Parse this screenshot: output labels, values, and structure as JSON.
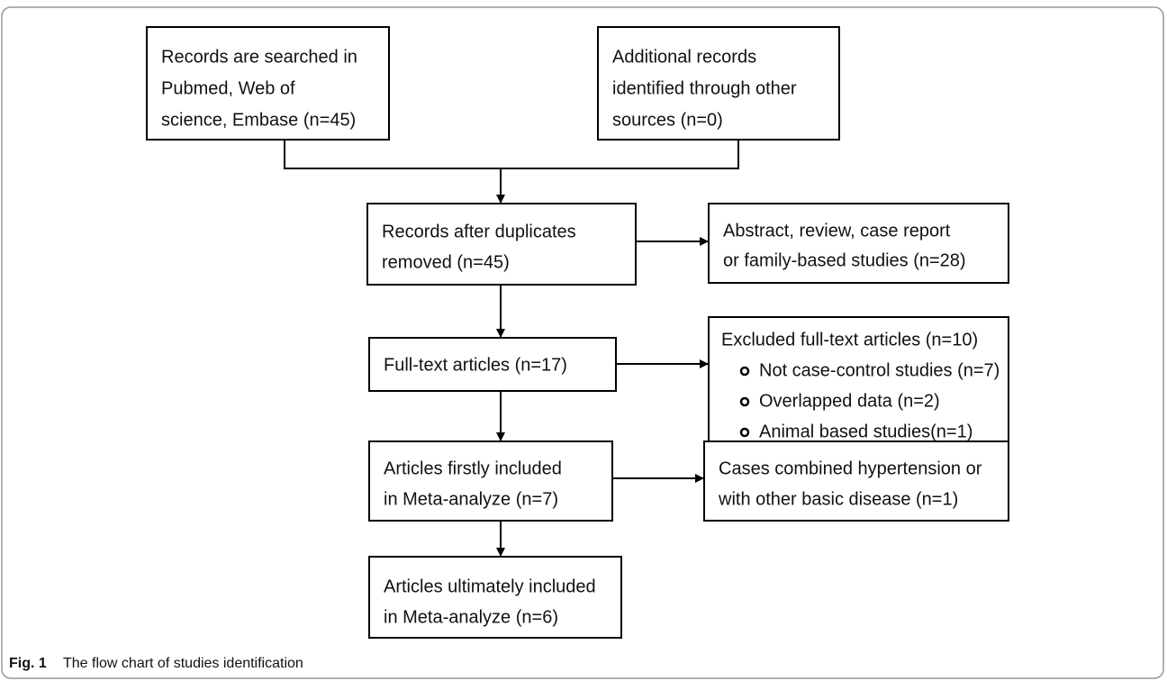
{
  "nodes": [
    {
      "lines": [
        "Records are searched in",
        "Pubmed, Web of",
        "science, Embase (n=45)"
      ]
    },
    {
      "lines": [
        "Additional records",
        "identified through other",
        "sources (n=0)"
      ]
    },
    {
      "lines": [
        "Records after duplicates",
        "removed (n=45)"
      ]
    },
    {
      "lines": [
        "Abstract, review, case report",
        "or family-based studies (n=28)"
      ]
    },
    {
      "lines": [
        "Full-text articles (n=17)"
      ]
    },
    {
      "title": "Excluded full-text articles (n=10)",
      "items": [
        "Not case-control studies (n=7)",
        "Overlapped data (n=2)",
        "Animal based studies(n=1)"
      ]
    },
    {
      "lines": [
        "Articles firstly included",
        "in Meta-analyze (n=7)"
      ]
    },
    {
      "lines": [
        "Cases combined hypertension or",
        "with other basic disease (n=1)"
      ]
    },
    {
      "lines": [
        "Articles ultimately included",
        "in Meta-analyze (n=6)"
      ]
    }
  ],
  "caption": {
    "label": "Fig. 1",
    "text": "The flow chart of studies identification"
  }
}
